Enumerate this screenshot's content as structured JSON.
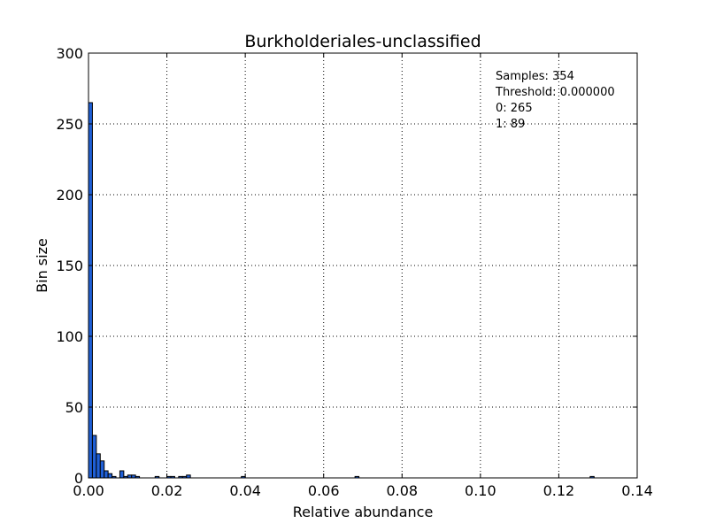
{
  "chart_data": {
    "type": "bar",
    "title": "Burkholderiales-unclassified",
    "xlabel": "Relative abundance",
    "ylabel": "Bin size",
    "xlim": [
      0,
      0.14
    ],
    "ylim": [
      0,
      300
    ],
    "xticks": [
      "0.00",
      "0.02",
      "0.04",
      "0.06",
      "0.08",
      "0.10",
      "0.12",
      "0.14"
    ],
    "yticks": [
      "0",
      "50",
      "100",
      "150",
      "200",
      "250",
      "300"
    ],
    "grid": true,
    "bar_color": "#1f5fd6",
    "bin_width": 0.001,
    "bins": [
      {
        "x": 0.0,
        "count": 265
      },
      {
        "x": 0.001,
        "count": 30
      },
      {
        "x": 0.002,
        "count": 17
      },
      {
        "x": 0.003,
        "count": 12
      },
      {
        "x": 0.004,
        "count": 5
      },
      {
        "x": 0.005,
        "count": 3
      },
      {
        "x": 0.006,
        "count": 1
      },
      {
        "x": 0.008,
        "count": 5
      },
      {
        "x": 0.009,
        "count": 1
      },
      {
        "x": 0.01,
        "count": 2
      },
      {
        "x": 0.011,
        "count": 2
      },
      {
        "x": 0.012,
        "count": 1
      },
      {
        "x": 0.017,
        "count": 1
      },
      {
        "x": 0.02,
        "count": 1
      },
      {
        "x": 0.021,
        "count": 1
      },
      {
        "x": 0.023,
        "count": 1
      },
      {
        "x": 0.024,
        "count": 1
      },
      {
        "x": 0.025,
        "count": 2
      },
      {
        "x": 0.039,
        "count": 1
      },
      {
        "x": 0.068,
        "count": 1
      },
      {
        "x": 0.128,
        "count": 1
      }
    ],
    "annotations": [
      "Samples: 354",
      "Threshold: 0.000000",
      "0: 265",
      "1: 89"
    ]
  }
}
